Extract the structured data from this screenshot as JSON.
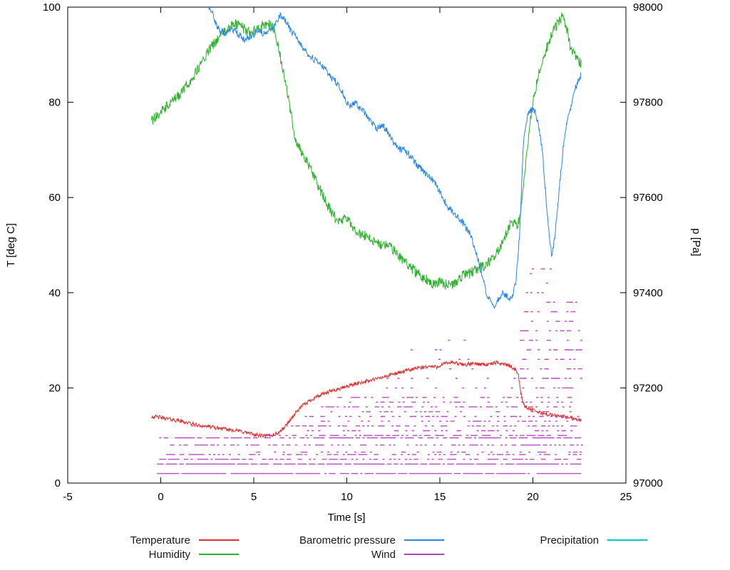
{
  "chart_data": {
    "type": "line",
    "title": "",
    "xlabel": "Time [s]",
    "ylabel_left": "T [deg C]",
    "ylabel_right": "p [Pa]",
    "xlim": [
      -5,
      25
    ],
    "ylim_left": [
      0,
      100
    ],
    "ylim_right": [
      97000,
      98000
    ],
    "x_ticks": [
      -5,
      0,
      5,
      10,
      15,
      20,
      25
    ],
    "y_ticks_left": [
      0,
      20,
      40,
      60,
      80,
      100
    ],
    "y_ticks_right": [
      97000,
      97200,
      97400,
      97600,
      97800,
      98000
    ],
    "grid": false,
    "legend_position": "bottom",
    "legend_columns": [
      [
        0,
        1
      ],
      [
        2,
        3
      ],
      [
        4
      ]
    ],
    "series": [
      {
        "name": "Temperature",
        "color": "#e03131",
        "axis": "left",
        "noise": 0.4,
        "points": [
          [
            -0.5,
            14.0
          ],
          [
            0,
            13.8
          ],
          [
            0.5,
            13.4
          ],
          [
            1,
            13.1
          ],
          [
            1.5,
            12.6
          ],
          [
            2,
            12.1
          ],
          [
            2.5,
            11.9
          ],
          [
            3,
            11.6
          ],
          [
            3.5,
            11.3
          ],
          [
            4,
            11.1
          ],
          [
            4.5,
            10.7
          ],
          [
            5,
            10.2
          ],
          [
            5.3,
            10.0
          ],
          [
            5.6,
            9.9
          ],
          [
            6,
            10.1
          ],
          [
            6.3,
            10.5
          ],
          [
            6.6,
            11.5
          ],
          [
            7,
            13.5
          ],
          [
            7.3,
            15.0
          ],
          [
            7.6,
            16.2
          ],
          [
            8,
            17.3
          ],
          [
            8.4,
            18.2
          ],
          [
            8.8,
            18.8
          ],
          [
            9.2,
            19.4
          ],
          [
            9.6,
            19.8
          ],
          [
            10,
            20.3
          ],
          [
            10.4,
            20.8
          ],
          [
            10.8,
            21.2
          ],
          [
            11.2,
            21.5
          ],
          [
            11.6,
            21.9
          ],
          [
            12,
            22.3
          ],
          [
            12.4,
            22.8
          ],
          [
            12.8,
            23.2
          ],
          [
            13.2,
            23.6
          ],
          [
            13.6,
            24.0
          ],
          [
            14,
            24.3
          ],
          [
            14.4,
            24.5
          ],
          [
            14.8,
            24.4
          ],
          [
            15.2,
            25.0
          ],
          [
            15.6,
            25.4
          ],
          [
            16,
            25.0
          ],
          [
            16.4,
            24.9
          ],
          [
            16.8,
            25.1
          ],
          [
            17.2,
            25.0
          ],
          [
            17.6,
            24.9
          ],
          [
            18,
            25.3
          ],
          [
            18.4,
            25.1
          ],
          [
            18.8,
            24.6
          ],
          [
            19.0,
            24.0
          ],
          [
            19.2,
            23.2
          ],
          [
            19.35,
            19.0
          ],
          [
            19.5,
            16.5
          ],
          [
            19.7,
            15.8
          ],
          [
            20,
            15.3
          ],
          [
            20.4,
            14.8
          ],
          [
            20.8,
            14.4
          ],
          [
            21.2,
            14.2
          ],
          [
            21.6,
            14.0
          ],
          [
            22.0,
            13.7
          ],
          [
            22.3,
            13.5
          ],
          [
            22.6,
            13.2
          ]
        ]
      },
      {
        "name": "Humidity",
        "color": "#2cb22c",
        "axis": "left",
        "noise": 1.1,
        "points": [
          [
            -0.5,
            76
          ],
          [
            -0.3,
            77
          ],
          [
            0,
            78
          ],
          [
            0.3,
            79
          ],
          [
            0.6,
            80
          ],
          [
            1,
            81.5
          ],
          [
            1.3,
            83
          ],
          [
            1.6,
            84.5
          ],
          [
            2,
            87
          ],
          [
            2.3,
            89
          ],
          [
            2.6,
            91
          ],
          [
            3,
            93
          ],
          [
            3.3,
            94.5
          ],
          [
            3.6,
            95.5
          ],
          [
            4,
            96.5
          ],
          [
            4.3,
            96
          ],
          [
            4.6,
            95
          ],
          [
            5,
            95
          ],
          [
            5.3,
            95.5
          ],
          [
            5.6,
            96.5
          ],
          [
            5.9,
            96.5
          ],
          [
            6.1,
            95
          ],
          [
            6.3,
            92
          ],
          [
            6.5,
            88
          ],
          [
            6.7,
            84
          ],
          [
            6.9,
            80
          ],
          [
            7.1,
            75
          ],
          [
            7.3,
            71.5
          ],
          [
            7.5,
            70
          ],
          [
            7.8,
            68
          ],
          [
            8.1,
            65.5
          ],
          [
            8.4,
            63
          ],
          [
            8.7,
            60.5
          ],
          [
            9,
            58
          ],
          [
            9.3,
            56
          ],
          [
            9.6,
            55
          ],
          [
            10,
            55.5
          ],
          [
            10.3,
            54
          ],
          [
            10.6,
            52.5
          ],
          [
            11,
            52
          ],
          [
            11.4,
            51
          ],
          [
            11.8,
            50
          ],
          [
            12.2,
            50
          ],
          [
            12.6,
            48.5
          ],
          [
            13,
            47
          ],
          [
            13.4,
            45.5
          ],
          [
            13.8,
            44
          ],
          [
            14.2,
            43
          ],
          [
            14.6,
            42
          ],
          [
            15,
            42.5
          ],
          [
            15.4,
            41.5
          ],
          [
            15.8,
            42
          ],
          [
            16.2,
            43.5
          ],
          [
            16.6,
            44
          ],
          [
            17,
            45
          ],
          [
            17.4,
            45.5
          ],
          [
            17.8,
            47
          ],
          [
            18.2,
            49
          ],
          [
            18.5,
            52
          ],
          [
            18.8,
            54.5
          ],
          [
            19,
            55
          ],
          [
            19.15,
            54
          ],
          [
            19.3,
            56
          ],
          [
            19.5,
            63
          ],
          [
            19.7,
            70
          ],
          [
            19.9,
            77
          ],
          [
            20.1,
            82
          ],
          [
            20.3,
            86
          ],
          [
            20.5,
            89
          ],
          [
            20.8,
            92
          ],
          [
            21.1,
            95
          ],
          [
            21.4,
            97
          ],
          [
            21.6,
            98.5
          ],
          [
            21.8,
            96
          ],
          [
            22,
            92
          ],
          [
            22.2,
            90
          ],
          [
            22.4,
            89
          ],
          [
            22.6,
            88
          ]
        ]
      },
      {
        "name": "Barometric pressure",
        "color": "#2d87e0",
        "axis": "right",
        "noise": 7,
        "points": [
          [
            2.4,
            98015
          ],
          [
            2.6,
            98000
          ],
          [
            2.8,
            97985
          ],
          [
            3.0,
            97962
          ],
          [
            3.2,
            97950
          ],
          [
            3.5,
            97945
          ],
          [
            3.8,
            97952
          ],
          [
            4.0,
            97950
          ],
          [
            4.2,
            97942
          ],
          [
            4.5,
            97932
          ],
          [
            4.8,
            97938
          ],
          [
            5.0,
            97942
          ],
          [
            5.2,
            97950
          ],
          [
            5.5,
            97945
          ],
          [
            5.8,
            97948
          ],
          [
            6.0,
            97952
          ],
          [
            6.2,
            97968
          ],
          [
            6.4,
            97982
          ],
          [
            6.6,
            97978
          ],
          [
            6.8,
            97965
          ],
          [
            7.0,
            97950
          ],
          [
            7.3,
            97935
          ],
          [
            7.6,
            97915
          ],
          [
            8.0,
            97898
          ],
          [
            8.4,
            97885
          ],
          [
            8.8,
            97872
          ],
          [
            9.2,
            97852
          ],
          [
            9.6,
            97835
          ],
          [
            10.0,
            97800
          ],
          [
            10.2,
            97792
          ],
          [
            10.4,
            97800
          ],
          [
            10.7,
            97788
          ],
          [
            11.0,
            97775
          ],
          [
            11.3,
            97758
          ],
          [
            11.6,
            97745
          ],
          [
            11.9,
            97752
          ],
          [
            12.2,
            97738
          ],
          [
            12.5,
            97715
          ],
          [
            12.8,
            97702
          ],
          [
            13.1,
            97700
          ],
          [
            13.4,
            97688
          ],
          [
            13.7,
            97672
          ],
          [
            14.0,
            97660
          ],
          [
            14.3,
            97648
          ],
          [
            14.6,
            97638
          ],
          [
            15.0,
            97612
          ],
          [
            15.4,
            97582
          ],
          [
            15.8,
            97565
          ],
          [
            16.2,
            97548
          ],
          [
            16.6,
            97525
          ],
          [
            17.0,
            97478
          ],
          [
            17.3,
            97428
          ],
          [
            17.6,
            97388
          ],
          [
            17.9,
            97372
          ],
          [
            18.1,
            97382
          ],
          [
            18.4,
            97400
          ],
          [
            18.7,
            97388
          ],
          [
            18.9,
            97392
          ],
          [
            19.1,
            97428
          ],
          [
            19.3,
            97530
          ],
          [
            19.5,
            97722
          ],
          [
            19.7,
            97768
          ],
          [
            19.9,
            97785
          ],
          [
            20.1,
            97782
          ],
          [
            20.3,
            97755
          ],
          [
            20.5,
            97700
          ],
          [
            20.7,
            97602
          ],
          [
            20.9,
            97512
          ],
          [
            21.0,
            97482
          ],
          [
            21.1,
            97495
          ],
          [
            21.3,
            97562
          ],
          [
            21.5,
            97655
          ],
          [
            21.7,
            97730
          ],
          [
            21.9,
            97772
          ],
          [
            22.1,
            97800
          ],
          [
            22.3,
            97832
          ],
          [
            22.6,
            97858
          ]
        ]
      },
      {
        "name": "Wind",
        "color": "#b345bd",
        "axis": "left",
        "style": "dashes",
        "segments": [
          [
            2,
            -0.2,
            22.6,
            0.85
          ],
          [
            4,
            -0.2,
            22.6,
            0.8
          ],
          [
            5,
            -0.2,
            22.6,
            0.55
          ],
          [
            6,
            0.3,
            22.6,
            0.5
          ],
          [
            6.5,
            5,
            22.6,
            0.3
          ],
          [
            8,
            0.5,
            22.6,
            0.45
          ],
          [
            9.5,
            -0.2,
            22.6,
            0.7
          ],
          [
            10,
            5.5,
            22.6,
            0.5
          ],
          [
            11,
            7.5,
            22.4,
            0.35
          ],
          [
            12,
            7,
            22.4,
            0.5
          ],
          [
            12,
            0.8,
            4,
            0.08
          ],
          [
            13,
            8,
            22.4,
            0.3
          ],
          [
            14,
            7.5,
            22.4,
            0.45
          ],
          [
            15,
            9,
            22.3,
            0.25
          ],
          [
            16,
            8.5,
            22.3,
            0.4
          ],
          [
            17,
            10,
            22.3,
            0.25
          ],
          [
            18,
            9.5,
            22.3,
            0.35
          ],
          [
            20,
            11.5,
            19,
            0.1
          ],
          [
            22,
            12,
            19,
            0.08
          ],
          [
            24,
            12.5,
            19,
            0.06
          ],
          [
            26,
            13,
            19,
            0.05
          ],
          [
            28,
            10.3,
            17,
            0.06
          ],
          [
            30,
            11,
            16.8,
            0.05
          ],
          [
            20,
            19.3,
            22.6,
            0.5
          ],
          [
            22,
            19.3,
            22.6,
            0.45
          ],
          [
            24,
            19.3,
            22.6,
            0.45
          ],
          [
            26,
            19.3,
            22.6,
            0.4
          ],
          [
            28,
            19.3,
            22.6,
            0.4
          ],
          [
            30,
            19.3,
            22.6,
            0.35
          ],
          [
            32,
            19.3,
            22.5,
            0.3
          ],
          [
            34,
            19.3,
            22.5,
            0.3
          ],
          [
            36,
            19.4,
            22.4,
            0.25
          ],
          [
            38,
            19.4,
            22.4,
            0.2
          ],
          [
            40,
            19.5,
            22.3,
            0.2
          ],
          [
            42,
            19.5,
            22.2,
            0.15
          ],
          [
            44,
            19.6,
            22.0,
            0.12
          ],
          [
            45,
            19.7,
            21.5,
            0.08
          ]
        ]
      },
      {
        "name": "Precipitation",
        "color": "#00c7cf",
        "axis": "left",
        "noise": 0,
        "points": []
      }
    ]
  }
}
